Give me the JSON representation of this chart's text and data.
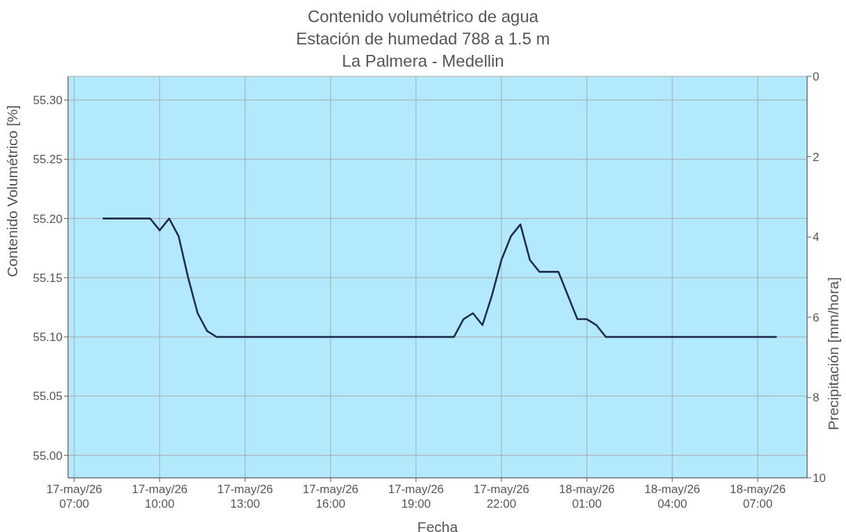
{
  "chart_data": {
    "type": "line",
    "title": "Contenido volumétrico de agua\nEstación de humedad 788 a 1.5 m\nLa Palmera - Medellin",
    "xlabel": "Fecha",
    "ylabel": "Contenido Volumétrico [%]",
    "y2label": "Precipitación [mm/hora]",
    "series": [
      {
        "color": "#1e2a4e",
        "x": [
          "--05-17T08:00",
          "--05-17T09:40",
          "--05-17T10:00",
          "--05-17T10:20",
          "--05-17T10:40",
          "--05-17T11:00",
          "--05-17T11:20",
          "--05-17T11:40",
          "--05-17T12:00",
          "--05-17T20:20",
          "--05-17T20:40",
          "--05-17T21:00",
          "--05-17T21:20",
          "--05-17T21:40",
          "--05-17T22:00",
          "--05-17T22:20",
          "--05-17T22:40",
          "--05-17T23:00",
          "--05-17T23:20",
          "--05-18T00:00",
          "--05-18T00:40",
          "--05-18T01:00",
          "--05-18T01:20",
          "--05-18T01:40",
          "--05-18T07:40"
        ],
        "values": [
          55.2,
          55.2,
          55.19,
          55.2,
          55.185,
          55.15,
          55.12,
          55.105,
          55.1,
          55.1,
          55.115,
          55.12,
          55.11,
          55.135,
          55.165,
          55.185,
          55.195,
          55.165,
          55.155,
          55.155,
          55.115,
          55.115,
          55.11,
          55.1,
          55.1
        ]
      }
    ],
    "xlim": [
      "--05-17T06:47",
      "--05-18T08:44"
    ],
    "xticks": [
      {
        "value": "--05-17T07:00",
        "label": "17-may/26\n07:00"
      },
      {
        "value": "--05-17T10:00",
        "label": "17-may/26\n10:00"
      },
      {
        "value": "--05-17T13:00",
        "label": "17-may/26\n13:00"
      },
      {
        "value": "--05-17T16:00",
        "label": "17-may/26\n16:00"
      },
      {
        "value": "--05-17T19:00",
        "label": "17-may/26\n19:00"
      },
      {
        "value": "--05-17T22:00",
        "label": "17-may/26\n22:00"
      },
      {
        "value": "--05-18T01:00",
        "label": "18-may/26\n01:00"
      },
      {
        "value": "--05-18T04:00",
        "label": "18-may/26\n04:00"
      },
      {
        "value": "--05-18T07:00",
        "label": "18-may/26\n07:00"
      }
    ],
    "ylim": [
      54.981,
      55.32
    ],
    "yticks": [
      {
        "value": 55,
        "label": "55.00"
      },
      {
        "value": 55.05,
        "label": "55.05"
      },
      {
        "value": 55.1,
        "label": "55.10"
      },
      {
        "value": 55.15,
        "label": "55.15"
      },
      {
        "value": 55.2,
        "label": "55.20"
      },
      {
        "value": 55.25,
        "label": "55.25"
      },
      {
        "value": 55.3,
        "label": "55.30"
      }
    ],
    "y2lim": [
      10,
      0
    ],
    "y2ticks": [
      0,
      2,
      4,
      6,
      8,
      10
    ],
    "grid": true,
    "legend": false,
    "marker": "none",
    "line_style": "solid"
  }
}
